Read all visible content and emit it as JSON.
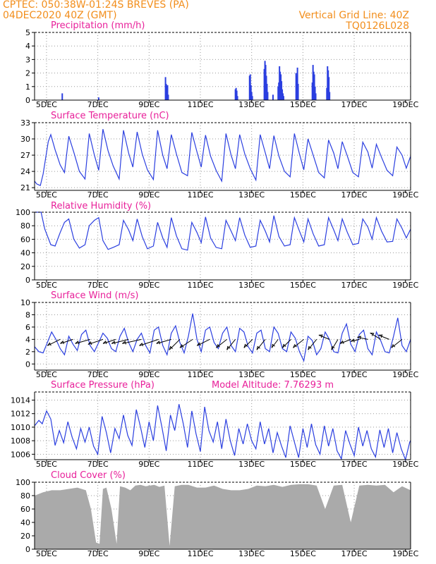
{
  "header": {
    "line1": "CPTEC:   050:38W-01:24S   BREVES (PA)",
    "line2": "04DEC2020 40Z (GMT)",
    "grid_note": "Vertical Grid Line: 40Z",
    "code": "TQ0126L028"
  },
  "colors": {
    "header": "#f28e1c",
    "panel_title": "#e8209a",
    "series": "#2b3fe0",
    "cloud": "#aaaaaa",
    "precip": "#2b3fe0"
  },
  "chart_data": [
    {
      "type": "bar",
      "title": "Precipitation (mm/h)",
      "x_unit": "days since 04DEC2020 00Z",
      "x_ticks": [
        "5DEC",
        "7DEC",
        "9DEC",
        "11DEC",
        "13DEC",
        "15DEC",
        "17DEC",
        "19DEC"
      ],
      "ylim": [
        0,
        5
      ],
      "yticks": [
        0,
        1,
        2,
        3,
        4,
        5
      ],
      "grid": "dotted",
      "x": [
        1.62,
        3.75,
        7.66,
        7.7,
        7.74,
        7.78,
        7.82,
        11.75,
        11.79,
        11.83,
        11.87,
        12.58,
        12.62,
        12.66,
        12.7,
        12.74,
        13.44,
        13.48,
        13.52,
        13.56,
        13.6,
        13.64,
        13.95,
        14.25,
        14.29,
        14.33,
        14.37,
        14.41,
        14.45,
        14.49,
        14.53,
        14.57,
        15.3,
        15.34,
        15.38,
        15.42,
        16.25,
        16.29,
        16.33,
        16.37,
        16.41,
        16.45,
        17.1,
        17.14,
        17.18,
        17.22,
        17.26
      ],
      "values": [
        0.5,
        0.2,
        1.7,
        1.2,
        0.8,
        1.1,
        0.4,
        0.8,
        0.9,
        0.7,
        0.3,
        1.8,
        1.9,
        1.1,
        0.6,
        0.3,
        2.3,
        2.9,
        2.6,
        1.8,
        1.2,
        0.6,
        0.4,
        1.0,
        1.3,
        2.5,
        2.1,
        1.9,
        1.4,
        0.8,
        0.5,
        0.3,
        2.0,
        1.8,
        2.4,
        1.2,
        1.3,
        2.6,
        2.1,
        1.9,
        1.0,
        0.5,
        0.9,
        2.5,
        2.2,
        1.7,
        0.6
      ]
    },
    {
      "type": "line",
      "title": "Surface Temperature (nC)",
      "x_unit": "days since 04DEC2020 00Z",
      "x_ticks": [
        "5DEC",
        "7DEC",
        "9DEC",
        "11DEC",
        "13DEC",
        "15DEC",
        "17DEC",
        "19DEC"
      ],
      "ylim": [
        20.5,
        33
      ],
      "yticks": [
        21,
        24,
        27,
        30,
        33
      ],
      "grid": "dotted",
      "x": [
        0.0,
        0.12,
        0.25,
        0.34,
        0.5,
        0.8,
        0.95,
        1.2,
        1.5,
        1.75,
        2.0,
        2.3,
        2.62,
        2.95,
        3.2,
        3.5,
        3.75,
        4.0,
        4.3,
        4.6,
        4.95,
        5.2,
        5.5,
        5.75,
        6.0,
        6.3,
        6.6,
        6.95,
        7.2,
        7.5,
        7.75,
        8.0,
        8.3,
        8.62,
        8.95,
        9.2,
        9.5,
        9.75,
        10.0,
        10.3,
        10.62,
        10.95,
        11.2,
        11.5,
        11.75,
        12.0,
        12.3,
        12.62,
        12.95,
        13.2,
        13.5,
        13.75,
        14.0,
        14.3,
        14.62,
        14.95,
        15.2,
        15.5,
        15.75,
        16.0,
        16.3,
        16.62,
        16.95,
        17.2,
        17.5,
        17.75,
        18.0,
        18.3,
        18.62,
        18.95,
        19.2,
        19.5,
        19.75,
        20.0,
        20.3,
        20.62,
        20.95,
        21.2,
        21.5,
        21.75,
        22.0
      ],
      "values": [
        22.2,
        21.7,
        21.5,
        21.4,
        23.5,
        29.5,
        30.8,
        28.0,
        25.2,
        23.8,
        30.5,
        27.5,
        24.0,
        22.6,
        31.0,
        27.0,
        24.2,
        31.8,
        27.8,
        25.0,
        22.6,
        31.6,
        27.4,
        24.8,
        31.3,
        27.2,
        24.3,
        22.5,
        31.6,
        27.0,
        24.5,
        30.8,
        27.2,
        23.8,
        23.2,
        31.2,
        27.6,
        24.8,
        30.7,
        26.8,
        24.2,
        22.2,
        31.0,
        27.0,
        24.5,
        30.8,
        27.2,
        24.5,
        22.4,
        30.8,
        27.4,
        24.5,
        30.6,
        26.8,
        24.0,
        23.0,
        31.0,
        27.2,
        24.3,
        30.0,
        27.0,
        23.8,
        22.8,
        29.8,
        27.4,
        24.5,
        29.5,
        26.8,
        23.8,
        23.0,
        29.4,
        27.6,
        24.6,
        29.0,
        26.6,
        24.2,
        23.2,
        28.5,
        27.0,
        24.6,
        26.8
      ]
    },
    {
      "type": "line",
      "title": "Relative Humidity (%)",
      "x_unit": "days since 04DEC2020 00Z",
      "x_ticks": [
        "5DEC",
        "7DEC",
        "9DEC",
        "11DEC",
        "13DEC",
        "15DEC",
        "17DEC",
        "19DEC"
      ],
      "ylim": [
        0,
        100
      ],
      "yticks": [
        0,
        20,
        40,
        60,
        80,
        100
      ],
      "grid": "dotted",
      "x": [
        0.0,
        0.38,
        0.6,
        0.95,
        1.2,
        1.5,
        1.75,
        2.0,
        2.3,
        2.62,
        2.95,
        3.2,
        3.5,
        3.75,
        4.0,
        4.3,
        4.6,
        4.95,
        5.2,
        5.5,
        5.75,
        6.0,
        6.3,
        6.6,
        6.95,
        7.2,
        7.5,
        7.75,
        8.0,
        8.3,
        8.62,
        8.95,
        9.2,
        9.5,
        9.75,
        10.0,
        10.3,
        10.62,
        10.95,
        11.2,
        11.5,
        11.75,
        12.0,
        12.3,
        12.62,
        12.95,
        13.2,
        13.5,
        13.75,
        14.0,
        14.3,
        14.62,
        14.95,
        15.2,
        15.5,
        15.75,
        16.0,
        16.3,
        16.62,
        16.95,
        17.2,
        17.5,
        17.75,
        18.0,
        18.3,
        18.62,
        18.95,
        19.2,
        19.5,
        19.75,
        20.0,
        20.3,
        20.62,
        20.95,
        21.2,
        21.5,
        21.75,
        22.0
      ],
      "values": [
        100,
        100,
        75,
        52,
        50,
        70,
        85,
        90,
        60,
        47,
        52,
        80,
        88,
        92,
        58,
        45,
        48,
        52,
        88,
        74,
        58,
        90,
        64,
        46,
        50,
        85,
        62,
        48,
        92,
        65,
        46,
        44,
        85,
        70,
        55,
        93,
        62,
        48,
        46,
        88,
        72,
        58,
        92,
        66,
        48,
        50,
        88,
        72,
        56,
        95,
        64,
        50,
        52,
        92,
        72,
        56,
        90,
        68,
        50,
        52,
        92,
        74,
        58,
        90,
        70,
        52,
        54,
        90,
        78,
        60,
        92,
        72,
        56,
        57,
        90,
        76,
        62,
        75
      ]
    },
    {
      "type": "line",
      "title": "Surface Wind (m/s)",
      "x_unit": "days since 04DEC2020 00Z",
      "x_ticks": [
        "5DEC",
        "7DEC",
        "9DEC",
        "11DEC",
        "13DEC",
        "15DEC",
        "17DEC",
        "19DEC"
      ],
      "ylim": [
        -1,
        10
      ],
      "yticks": [
        0,
        2,
        4,
        6,
        8,
        10
      ],
      "grid": "dotted",
      "x": [
        0.0,
        0.25,
        0.5,
        0.75,
        1.0,
        1.25,
        1.5,
        1.75,
        2.0,
        2.25,
        2.5,
        2.75,
        3.0,
        3.25,
        3.5,
        3.75,
        4.0,
        4.25,
        4.5,
        4.75,
        5.0,
        5.25,
        5.5,
        5.75,
        6.0,
        6.25,
        6.5,
        6.75,
        7.0,
        7.25,
        7.5,
        7.75,
        8.0,
        8.25,
        8.5,
        8.75,
        9.0,
        9.25,
        9.5,
        9.75,
        10.0,
        10.25,
        10.5,
        10.75,
        11.0,
        11.25,
        11.5,
        11.75,
        12.0,
        12.25,
        12.5,
        12.75,
        13.0,
        13.25,
        13.5,
        13.75,
        14.0,
        14.25,
        14.5,
        14.75,
        15.0,
        15.25,
        15.5,
        15.75,
        16.0,
        16.25,
        16.5,
        16.75,
        17.0,
        17.25,
        17.5,
        17.75,
        18.0,
        18.25,
        18.5,
        18.75,
        19.0,
        19.25,
        19.5,
        19.75,
        20.0,
        20.25,
        20.5,
        20.75,
        21.0,
        21.25,
        21.5,
        21.75,
        22.0
      ],
      "values": [
        2.8,
        2.0,
        1.8,
        3.5,
        5.2,
        4.0,
        2.5,
        1.5,
        4.5,
        3.2,
        2.2,
        4.8,
        5.5,
        3.0,
        2.0,
        3.5,
        5.0,
        4.2,
        2.5,
        2.0,
        4.5,
        5.8,
        3.5,
        2.0,
        4.0,
        5.0,
        3.0,
        1.8,
        5.5,
        6.0,
        3.0,
        1.5,
        5.0,
        6.2,
        3.5,
        1.8,
        4.5,
        8.2,
        4.0,
        2.0,
        5.5,
        6.0,
        3.5,
        2.5,
        5.0,
        6.0,
        3.0,
        2.0,
        5.8,
        5.2,
        2.8,
        1.8,
        5.0,
        5.5,
        2.5,
        2.0,
        6.0,
        5.0,
        2.5,
        2.0,
        5.2,
        4.2,
        2.0,
        0.5,
        4.5,
        3.8,
        1.5,
        2.5,
        5.2,
        4.0,
        2.0,
        1.8,
        5.0,
        6.5,
        3.2,
        2.0,
        4.8,
        5.5,
        2.5,
        1.5,
        5.2,
        3.8,
        2.0,
        1.8,
        4.5,
        7.5,
        3.0,
        2.0,
        4.0
      ],
      "vectors": [
        {
          "x": 1.5,
          "u": -3.0,
          "v": -1.5
        },
        {
          "x": 2.25,
          "u": -3.0,
          "v": -1.0
        },
        {
          "x": 3.25,
          "u": -3.5,
          "v": -1.0
        },
        {
          "x": 4.0,
          "u": -3.5,
          "v": -1.2
        },
        {
          "x": 4.75,
          "u": -3.0,
          "v": -1.0
        },
        {
          "x": 5.5,
          "u": -4.0,
          "v": -1.0
        },
        {
          "x": 6.25,
          "u": -4.5,
          "v": -1.0
        },
        {
          "x": 7.25,
          "u": -4.5,
          "v": -1.5
        },
        {
          "x": 8.0,
          "u": -3.5,
          "v": -1.0
        },
        {
          "x": 8.5,
          "u": -2.5,
          "v": -2.5
        },
        {
          "x": 9.25,
          "u": -3.0,
          "v": -2.0
        },
        {
          "x": 10.25,
          "u": -3.0,
          "v": -1.5
        },
        {
          "x": 11.25,
          "u": -2.5,
          "v": -2.0
        },
        {
          "x": 11.75,
          "u": -2.0,
          "v": -2.5
        },
        {
          "x": 12.75,
          "u": -2.0,
          "v": -2.0
        },
        {
          "x": 13.5,
          "u": -2.0,
          "v": -2.5
        },
        {
          "x": 14.25,
          "u": -1.5,
          "v": -2.0
        },
        {
          "x": 15.0,
          "u": -2.0,
          "v": -2.0
        },
        {
          "x": 15.75,
          "u": -2.5,
          "v": -2.0
        },
        {
          "x": 16.5,
          "u": -2.0,
          "v": -2.5
        },
        {
          "x": 17.25,
          "u": -2.5,
          "v": 1.0
        },
        {
          "x": 17.75,
          "u": -1.5,
          "v": -2.5
        },
        {
          "x": 18.5,
          "u": -2.5,
          "v": -1.0
        },
        {
          "x": 19.0,
          "u": -2.0,
          "v": -0.5
        },
        {
          "x": 19.5,
          "u": -2.5,
          "v": 0.5
        },
        {
          "x": 20.25,
          "u": -2.5,
          "v": 1.5
        },
        {
          "x": 20.75,
          "u": -2.5,
          "v": 1.0
        },
        {
          "x": 21.5,
          "u": -2.5,
          "v": -2.0
        }
      ]
    },
    {
      "type": "line",
      "title": "Surface Pressure (hPa)",
      "annotation": "Model Altitude: 7.76293 m",
      "x_unit": "days since 04DEC2020 00Z",
      "x_ticks": [
        "5DEC",
        "7DEC",
        "9DEC",
        "11DEC",
        "13DEC",
        "15DEC",
        "17DEC",
        "19DEC"
      ],
      "ylim": [
        1005.2,
        1015.2
      ],
      "yticks": [
        1006,
        1008,
        1010,
        1012,
        1014
      ],
      "grid": "dotted",
      "x": [
        0.0,
        0.25,
        0.45,
        0.7,
        0.95,
        1.2,
        1.45,
        1.7,
        1.95,
        2.2,
        2.45,
        2.7,
        2.95,
        3.2,
        3.45,
        3.7,
        3.95,
        4.2,
        4.45,
        4.7,
        4.95,
        5.2,
        5.45,
        5.7,
        5.95,
        6.2,
        6.45,
        6.7,
        6.95,
        7.2,
        7.45,
        7.7,
        7.95,
        8.2,
        8.45,
        8.7,
        8.95,
        9.2,
        9.45,
        9.7,
        9.95,
        10.2,
        10.45,
        10.7,
        10.95,
        11.2,
        11.45,
        11.7,
        11.95,
        12.2,
        12.45,
        12.7,
        12.95,
        13.2,
        13.45,
        13.7,
        13.95,
        14.2,
        14.45,
        14.7,
        14.95,
        15.2,
        15.45,
        15.7,
        15.95,
        16.2,
        16.45,
        16.7,
        16.95,
        17.2,
        17.45,
        17.7,
        17.95,
        18.2,
        18.45,
        18.7,
        18.95,
        19.2,
        19.45,
        19.7,
        19.95,
        20.2,
        20.45,
        20.7,
        20.95,
        21.2,
        21.45,
        21.7,
        21.95,
        22.0
      ],
      "values": [
        1010.2,
        1011.0,
        1010.5,
        1012.4,
        1011.2,
        1007.3,
        1009.5,
        1007.7,
        1010.8,
        1008.5,
        1006.8,
        1009.8,
        1007.8,
        1010.0,
        1007.2,
        1006.0,
        1011.6,
        1009.2,
        1006.2,
        1009.8,
        1008.3,
        1011.8,
        1008.8,
        1007.3,
        1012.6,
        1010.0,
        1007.0,
        1010.8,
        1008.0,
        1013.2,
        1010.0,
        1006.5,
        1011.8,
        1009.5,
        1013.4,
        1010.5,
        1007.0,
        1012.4,
        1009.0,
        1006.4,
        1013.0,
        1009.5,
        1007.8,
        1010.8,
        1006.8,
        1011.2,
        1008.0,
        1005.8,
        1009.8,
        1007.5,
        1010.5,
        1008.0,
        1006.8,
        1010.8,
        1007.5,
        1009.8,
        1006.2,
        1009.2,
        1007.2,
        1005.5,
        1010.2,
        1007.8,
        1005.5,
        1009.8,
        1007.0,
        1010.5,
        1007.4,
        1006.0,
        1010.2,
        1007.2,
        1009.8,
        1006.5,
        1005.3,
        1009.5,
        1007.5,
        1005.8,
        1010.0,
        1007.2,
        1009.5,
        1006.8,
        1005.6,
        1009.6,
        1007.0,
        1009.8,
        1006.2,
        1009.2,
        1006.8,
        1005.2,
        1007.8,
        1008.0
      ]
    },
    {
      "type": "area",
      "title": "Cloud Cover (%)",
      "x_unit": "days since 04DEC2020 00Z",
      "x_ticks": [
        "5DEC",
        "7DEC",
        "9DEC",
        "11DEC",
        "13DEC",
        "15DEC",
        "17DEC",
        "19DEC"
      ],
      "ylim": [
        0,
        100
      ],
      "yticks": [
        0,
        20,
        40,
        60,
        80,
        100
      ],
      "grid": "dotted",
      "x": [
        0.0,
        0.5,
        1.0,
        1.5,
        2.0,
        2.5,
        3.0,
        3.3,
        3.6,
        3.8,
        4.0,
        4.2,
        4.5,
        4.8,
        5.0,
        5.3,
        5.6,
        5.9,
        6.2,
        6.5,
        7.0,
        7.3,
        7.6,
        7.9,
        8.2,
        8.6,
        9.0,
        9.5,
        10.0,
        10.5,
        11.0,
        11.5,
        12.0,
        12.5,
        13.0,
        13.5,
        14.0,
        14.5,
        15.0,
        15.5,
        16.0,
        16.5,
        17.0,
        17.5,
        18.0,
        18.5,
        19.0,
        19.5,
        20.0,
        20.5,
        21.0,
        21.5,
        22.0
      ],
      "values": [
        80,
        85,
        88,
        88,
        90,
        92,
        88,
        60,
        10,
        8,
        90,
        92,
        60,
        8,
        94,
        92,
        88,
        95,
        96,
        94,
        96,
        93,
        95,
        5,
        94,
        96,
        96,
        92,
        92,
        95,
        90,
        88,
        88,
        90,
        95,
        94,
        96,
        93,
        96,
        97,
        97,
        95,
        60,
        95,
        96,
        40,
        95,
        96,
        95,
        96,
        85,
        94,
        88
      ]
    }
  ]
}
